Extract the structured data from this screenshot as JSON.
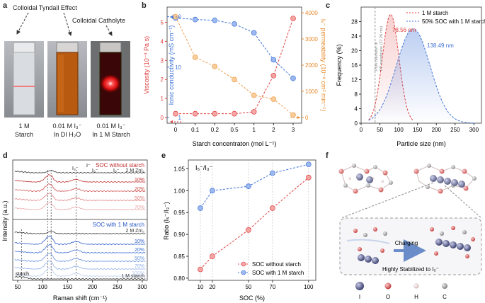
{
  "panels": {
    "a": "a",
    "b": "b",
    "c": "c",
    "d": "d",
    "e": "e",
    "f": "f"
  },
  "panel_a": {
    "top_left": "Colloidal Tyndall Effect",
    "top_right": "Colloidal Catholyte",
    "captions": [
      {
        "l1": "1 M",
        "l2": "Starch"
      },
      {
        "l1": "0.01 M I₃⁻",
        "l2": "In DI H₂O"
      },
      {
        "l1": "0.01 M I₃⁻",
        "l2": "In 1 M Starch"
      }
    ],
    "colors": {
      "liquid_clear": "#d9dde2",
      "liquid_amber": "#b85a10",
      "liquid_red": "#3a0608",
      "glow": "#ff2a2a"
    }
  },
  "chart_data": [
    {
      "id": "b",
      "type": "line",
      "categories": [
        "0",
        "0.1",
        "0.2",
        "0.5",
        "1",
        "2",
        "3"
      ],
      "xlabel": "Starch concentraton (mol L⁻¹)",
      "series": [
        {
          "name": "Viscosity",
          "axis": "left",
          "color": "#e0403f",
          "values": [
            0.2,
            0.2,
            0.2,
            0.2,
            0.3,
            2.2,
            5.2
          ]
        },
        {
          "name": "Ionic conductivity",
          "axis": "mid",
          "color": "#3f73d8",
          "values": [
            95,
            88,
            85,
            72,
            48,
            14,
            6
          ]
        },
        {
          "name": "Iₓ⁻ permeability",
          "axis": "right",
          "color": "#f0a050",
          "values": [
            3850,
            2300,
            1950,
            1450,
            850,
            700,
            100
          ]
        }
      ],
      "left_axis": {
        "label": "Viscosity (10⁻³ Pa s)",
        "ticks": [
          "0",
          "1",
          "2",
          "3",
          "4",
          "5"
        ],
        "ylim": [
          0,
          5.5
        ]
      },
      "mid_axis": {
        "label": "Ionic conductivity (mS cm⁻¹)",
        "ticks": [
          "1",
          "10",
          "100"
        ],
        "scale": "log",
        "ylim": [
          1,
          120
        ]
      },
      "right_axis": {
        "label": "Iₓ⁻ permeability (10⁻⁸ cm² min⁻¹)",
        "ticks": [
          "0",
          "1000",
          "2000",
          "3000",
          "4000"
        ],
        "ylim": [
          0,
          4000
        ]
      }
    },
    {
      "id": "c",
      "type": "area",
      "xlabel": "Particle size (nm)",
      "ylabel": "Frequency (%)",
      "xticks": [
        "0",
        "50",
        "100",
        "150",
        "200",
        "250",
        "300"
      ],
      "yticks": [
        "0",
        "4",
        "8",
        "12",
        "16",
        "20",
        "24",
        "28"
      ],
      "xlim": [
        0,
        320
      ],
      "ylim": [
        0,
        32
      ],
      "series": [
        {
          "name": "1 M starch",
          "color": "#e0403f",
          "peak_x": 78.56,
          "peak_y": 30,
          "sigma": 22,
          "range": [
            20,
            140
          ]
        },
        {
          "name": "50% SOC with 1 M starch",
          "color": "#3f73d8",
          "peak_x": 138.49,
          "peak_y": 26,
          "sigma": 45,
          "range": [
            20,
            300
          ]
        }
      ],
      "annotations": [
        "78.56 nm",
        "138.49 nm"
      ],
      "pore_line_x": 37.26,
      "pore_label_1": "Pore diameter of",
      "pore_label_2": "PP membrane (37.26 nm)"
    },
    {
      "id": "d",
      "type": "line",
      "xlabel": "Raman shift (cm⁻¹)",
      "ylabel": "Intensity (a.u.)",
      "xticks": [
        "50",
        "100",
        "150",
        "200",
        "250",
        "300"
      ],
      "xlim": [
        40,
        310
      ],
      "top_title": "SOC without starch",
      "bottom_title": "SOC with 1 M starch",
      "peak_labels": [
        "I₃⁻",
        "I⁻",
        "I₅⁻",
        "I₅⁻"
      ],
      "starch_label": "starch",
      "top_series": [
        {
          "name": "2 M ZnI₂",
          "color": "#333333"
        },
        {
          "name": "10%",
          "color": "#c0302f"
        },
        {
          "name": "20%",
          "color": "#d05050"
        },
        {
          "name": "50%",
          "color": "#e08080"
        },
        {
          "name": "70%",
          "color": "#eaa4a4"
        }
      ],
      "bottom_series": [
        {
          "name": "2 M ZnI₂",
          "color": "#333333"
        },
        {
          "name": "10%",
          "color": "#2757c6"
        },
        {
          "name": "20%",
          "color": "#3d6fd3"
        },
        {
          "name": "50%",
          "color": "#6690df"
        },
        {
          "name": "70%",
          "color": "#8eaee8"
        },
        {
          "name": "100%",
          "color": "#b9cdf0"
        },
        {
          "name": "1 M starch",
          "color": "#333333"
        }
      ]
    },
    {
      "id": "e",
      "type": "line",
      "title": "I₅⁻/I₃⁻",
      "xlabel": "SOC (%)",
      "ylabel": "Ratio (I₅⁻/I₃⁻)",
      "x": [
        10,
        20,
        50,
        70,
        100
      ],
      "xticks": [
        "10",
        "20",
        "50",
        "70",
        "100"
      ],
      "yticks": [
        "0.80",
        "0.85",
        "0.90",
        "0.95",
        "1.00",
        "1.05"
      ],
      "ylim": [
        0.795,
        1.07
      ],
      "series": [
        {
          "name": "SOC without starch",
          "color": "#e0403f",
          "values": [
            0.82,
            0.85,
            0.91,
            0.96,
            1.03
          ]
        },
        {
          "name": "SOC with 1 M starch",
          "color": "#3f73d8",
          "values": [
            0.96,
            1.0,
            1.01,
            1.04,
            1.06
          ]
        }
      ]
    }
  ],
  "panel_f": {
    "arrow_label": "Charging",
    "bottom_label": "Highly Stabilized to I₅⁻",
    "legend": [
      {
        "name": "I",
        "color": "#5a5f8a"
      },
      {
        "name": "O",
        "color": "#d86060"
      },
      {
        "name": "H",
        "color": "#e8c8c8"
      },
      {
        "name": "C",
        "color": "#9a9a9a"
      }
    ]
  }
}
